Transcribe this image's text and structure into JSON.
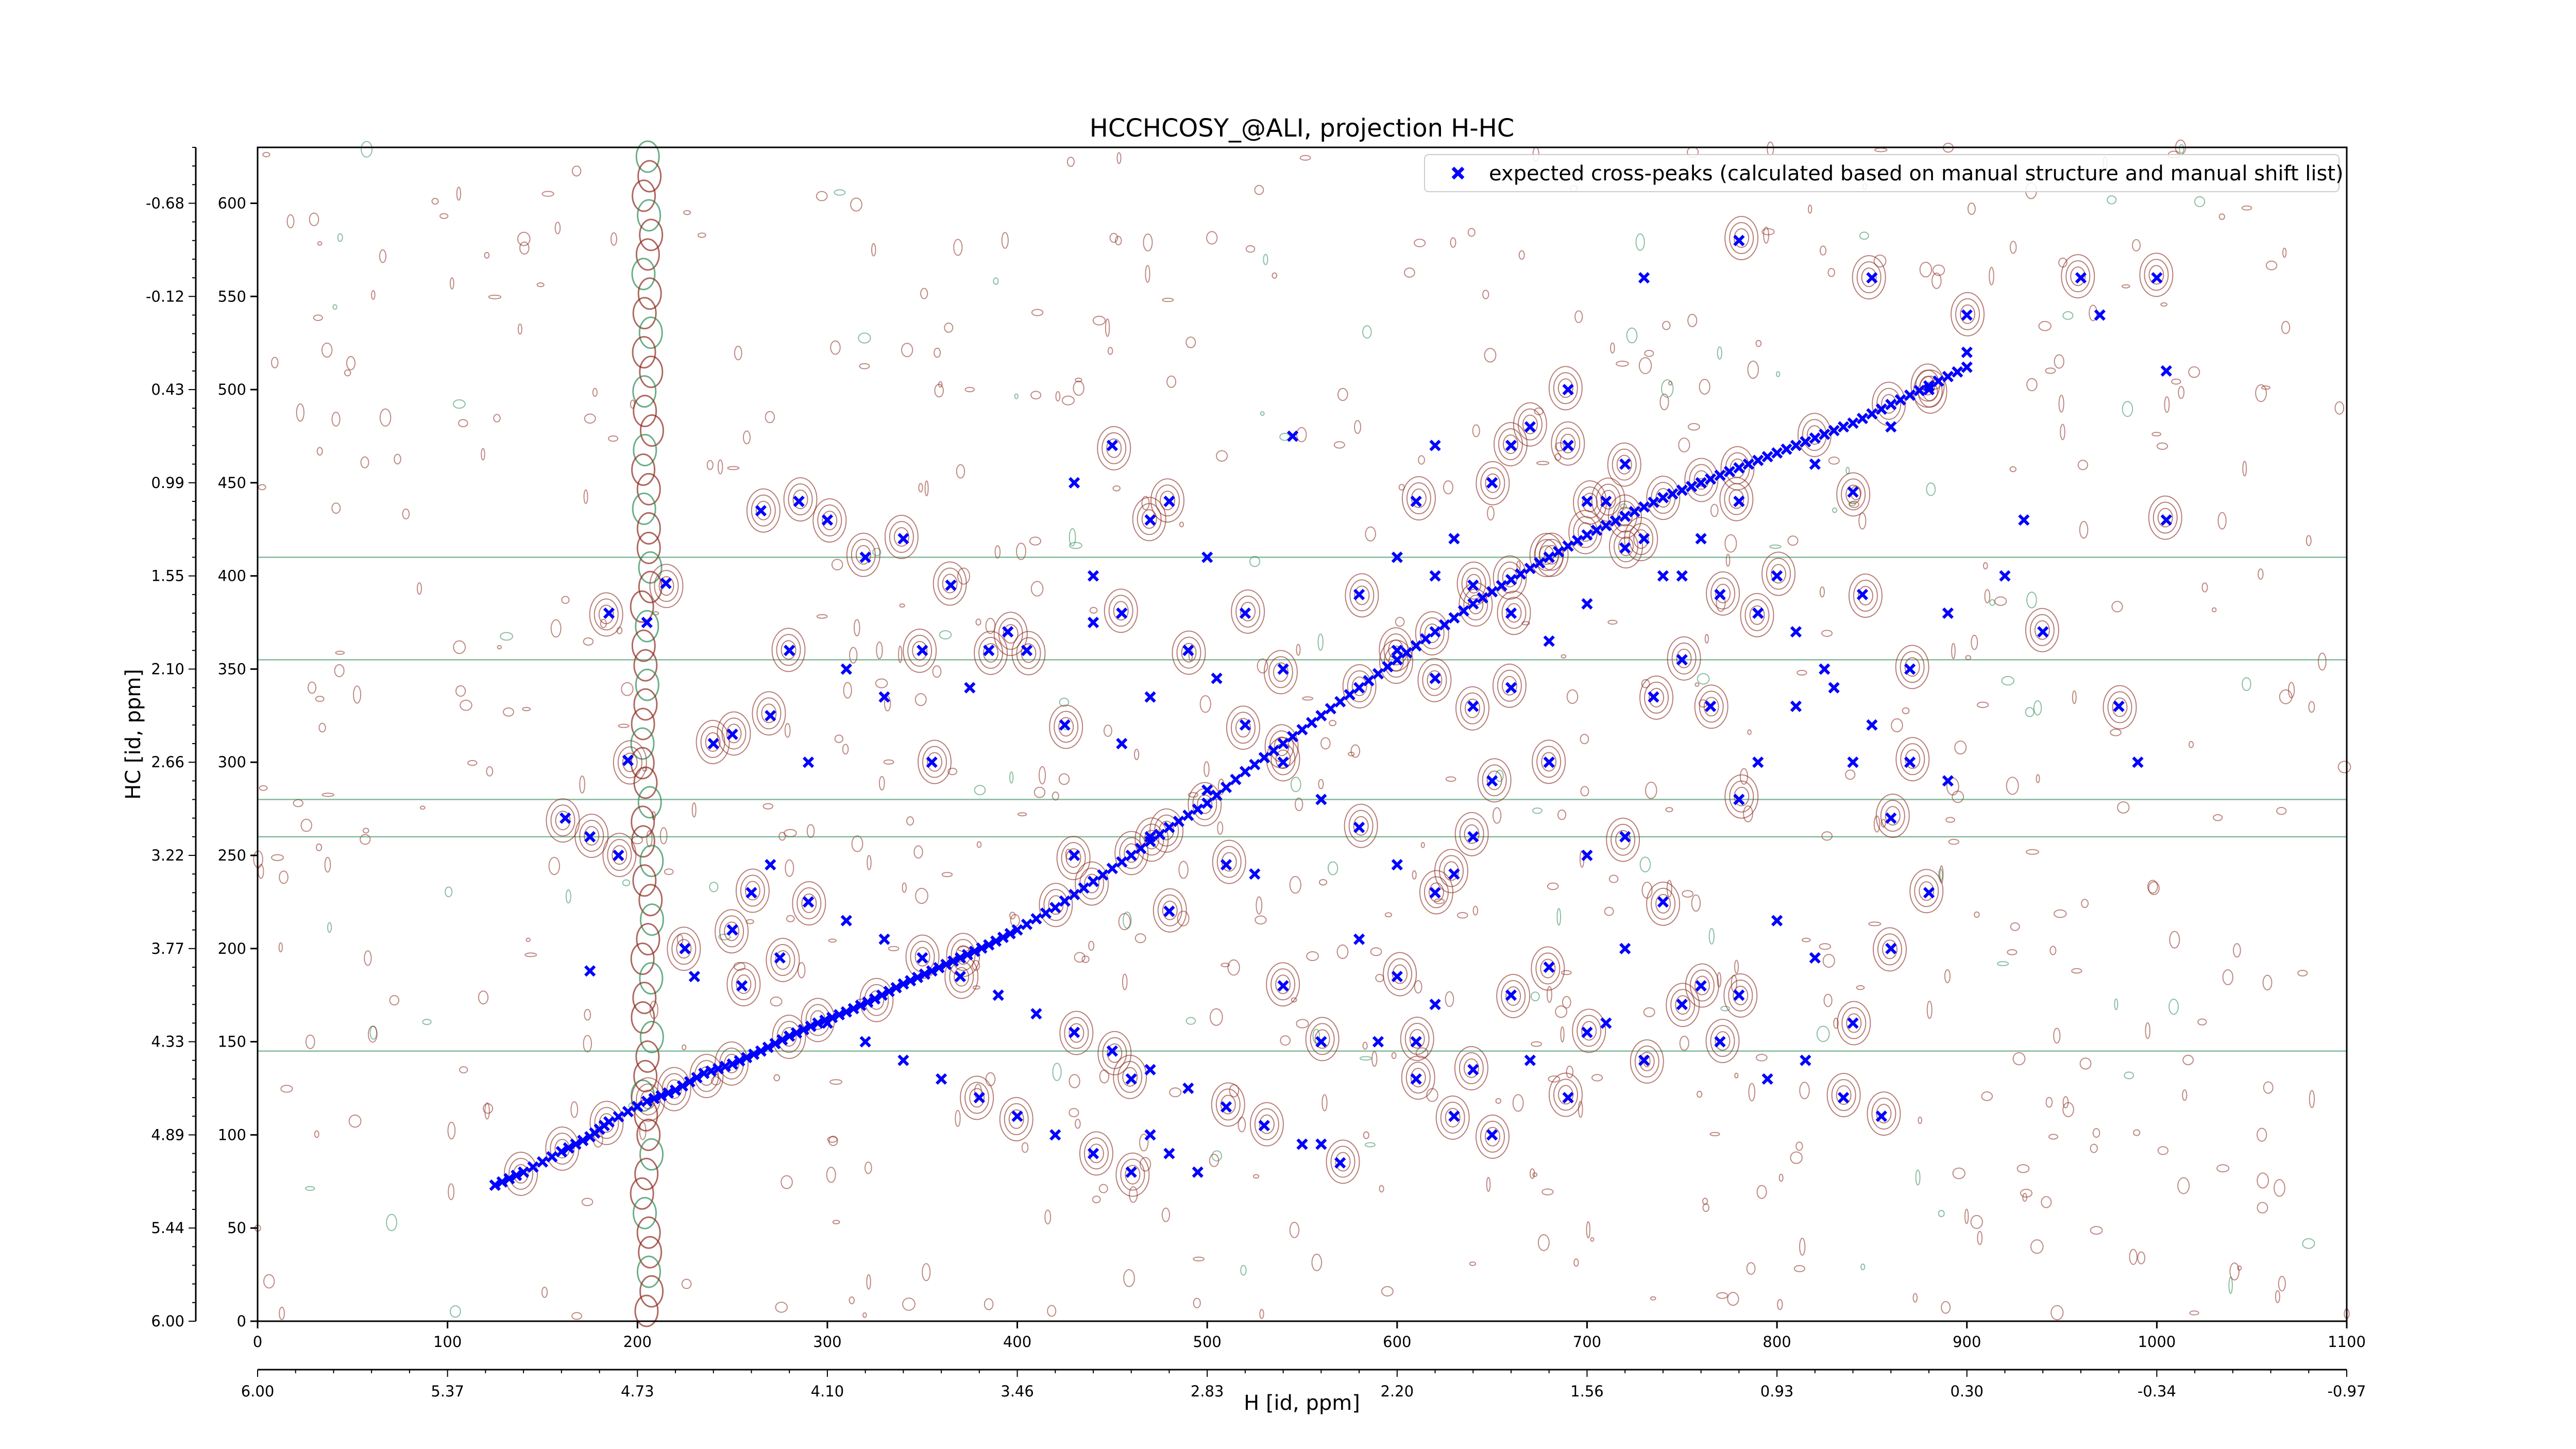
{
  "chart_data": {
    "type": "scatter",
    "title": "HCCHCOSY_@ALI, projection H-HC",
    "xlabel": "H [id, ppm]",
    "ylabel": "HC [id, ppm]",
    "xlim": [
      0,
      1100
    ],
    "ylim": [
      0,
      630
    ],
    "x_ticks_points": [
      0,
      100,
      200,
      300,
      400,
      500,
      600,
      700,
      800,
      900,
      1000,
      1100
    ],
    "x_ticks_ppm": [
      {
        "value": 0,
        "label": "6.00"
      },
      {
        "value": 100,
        "label": "5.37"
      },
      {
        "value": 200,
        "label": "4.73"
      },
      {
        "value": 300,
        "label": "4.10"
      },
      {
        "value": 400,
        "label": "3.46"
      },
      {
        "value": 500,
        "label": "2.83"
      },
      {
        "value": 600,
        "label": "2.20"
      },
      {
        "value": 700,
        "label": "1.56"
      },
      {
        "value": 800,
        "label": "0.93"
      },
      {
        "value": 900,
        "label": "0.30"
      },
      {
        "value": 1000,
        "label": "-0.34"
      },
      {
        "value": 1100,
        "label": "-0.97"
      }
    ],
    "y_ticks_points": [
      0,
      50,
      100,
      150,
      200,
      250,
      300,
      350,
      400,
      450,
      500,
      550,
      600
    ],
    "y_ticks_ppm": [
      {
        "value": 0,
        "label": "6.00"
      },
      {
        "value": 50,
        "label": "5.44"
      },
      {
        "value": 100,
        "label": "4.89"
      },
      {
        "value": 150,
        "label": "4.33"
      },
      {
        "value": 200,
        "label": "3.77"
      },
      {
        "value": 250,
        "label": "3.22"
      },
      {
        "value": 300,
        "label": "2.66"
      },
      {
        "value": 350,
        "label": "2.10"
      },
      {
        "value": 400,
        "label": "1.55"
      },
      {
        "value": 450,
        "label": "0.99"
      },
      {
        "value": 500,
        "label": "0.43"
      },
      {
        "value": 550,
        "label": "-0.12"
      },
      {
        "value": 600,
        "label": "-0.68"
      }
    ],
    "legend": {
      "position": "top-right",
      "entries": [
        {
          "label": "expected cross-peaks (calculated based on manual structure and manual shift list)",
          "color": "#0000ff",
          "marker": "x"
        }
      ]
    },
    "colors": {
      "peaks": "#0000ff",
      "contour_positive": "#8b2a1e",
      "contour_negative": "#2e8b57"
    },
    "grid": false,
    "series": [
      {
        "name": "expected cross-peaks (calculated based on manual structure and manual shift list)",
        "diagonal": [
          [
            125,
            73
          ],
          [
            140,
            80
          ],
          [
            160,
            91
          ],
          [
            175,
            99
          ],
          [
            185,
            107
          ],
          [
            205,
            118
          ],
          [
            220,
            124
          ],
          [
            235,
            133
          ],
          [
            250,
            138
          ],
          [
            265,
            145
          ],
          [
            280,
            153
          ],
          [
            295,
            160
          ],
          [
            310,
            166
          ],
          [
            325,
            173
          ],
          [
            340,
            181
          ],
          [
            355,
            188
          ],
          [
            370,
            195
          ],
          [
            385,
            202
          ],
          [
            400,
            210
          ],
          [
            420,
            222
          ],
          [
            440,
            236
          ],
          [
            460,
            250
          ],
          [
            480,
            265
          ],
          [
            500,
            278
          ],
          [
            520,
            295
          ],
          [
            540,
            310
          ],
          [
            560,
            325
          ],
          [
            580,
            340
          ],
          [
            600,
            355
          ],
          [
            620,
            370
          ],
          [
            640,
            385
          ],
          [
            660,
            398
          ],
          [
            680,
            410
          ],
          [
            700,
            422
          ],
          [
            720,
            432
          ],
          [
            740,
            442
          ],
          [
            760,
            450
          ],
          [
            780,
            458
          ],
          [
            800,
            466
          ],
          [
            820,
            474
          ],
          [
            840,
            482
          ],
          [
            860,
            492
          ],
          [
            880,
            502
          ],
          [
            900,
            512
          ]
        ],
        "points": [
          [
            125,
            73
          ],
          [
            162,
            270
          ],
          [
            175,
            188
          ],
          [
            175,
            260
          ],
          [
            185,
            380
          ],
          [
            190,
            250
          ],
          [
            195,
            301
          ],
          [
            205,
            375
          ],
          [
            215,
            396
          ],
          [
            225,
            200
          ],
          [
            230,
            185
          ],
          [
            240,
            310
          ],
          [
            250,
            315
          ],
          [
            255,
            180
          ],
          [
            265,
            435
          ],
          [
            270,
            325
          ],
          [
            275,
            195
          ],
          [
            280,
            360
          ],
          [
            285,
            440
          ],
          [
            290,
            300
          ],
          [
            300,
            430
          ],
          [
            310,
            350
          ],
          [
            320,
            410
          ],
          [
            330,
            335
          ],
          [
            340,
            420
          ],
          [
            350,
            360
          ],
          [
            355,
            300
          ],
          [
            365,
            395
          ],
          [
            375,
            340
          ],
          [
            385,
            360
          ],
          [
            395,
            370
          ],
          [
            405,
            360
          ],
          [
            425,
            320
          ],
          [
            430,
            250
          ],
          [
            440,
            375
          ],
          [
            455,
            310
          ],
          [
            470,
            260
          ],
          [
            480,
            220
          ],
          [
            500,
            285
          ],
          [
            510,
            245
          ],
          [
            525,
            240
          ],
          [
            540,
            180
          ],
          [
            560,
            150
          ],
          [
            580,
            205
          ],
          [
            600,
            185
          ],
          [
            610,
            150
          ],
          [
            620,
            170
          ],
          [
            640,
            135
          ],
          [
            660,
            175
          ],
          [
            680,
            190
          ],
          [
            700,
            155
          ],
          [
            720,
            200
          ],
          [
            740,
            225
          ],
          [
            760,
            180
          ],
          [
            780,
            175
          ],
          [
            800,
            215
          ],
          [
            820,
            195
          ],
          [
            840,
            160
          ],
          [
            860,
            200
          ],
          [
            880,
            230
          ],
          [
            460,
            130
          ],
          [
            470,
            100
          ],
          [
            480,
            90
          ],
          [
            495,
            80
          ],
          [
            560,
            95
          ],
          [
            545,
            475
          ],
          [
            580,
            390
          ],
          [
            600,
            360
          ],
          [
            620,
            345
          ],
          [
            640,
            330
          ],
          [
            660,
            380
          ],
          [
            680,
            410
          ],
          [
            700,
            440
          ],
          [
            720,
            460
          ],
          [
            740,
            400
          ],
          [
            760,
            420
          ],
          [
            780,
            440
          ],
          [
            800,
            400
          ],
          [
            820,
            460
          ],
          [
            840,
            445
          ],
          [
            860,
            480
          ],
          [
            880,
            500
          ],
          [
            900,
            520
          ],
          [
            930,
            430
          ],
          [
            970,
            540
          ],
          [
            1005,
            430
          ],
          [
            1005,
            510
          ],
          [
            840,
            300
          ],
          [
            860,
            270
          ],
          [
            780,
            280
          ],
          [
            720,
            260
          ],
          [
            700,
            250
          ],
          [
            680,
            300
          ],
          [
            650,
            290
          ],
          [
            640,
            260
          ],
          [
            630,
            240
          ],
          [
            620,
            230
          ],
          [
            600,
            245
          ],
          [
            580,
            265
          ],
          [
            560,
            280
          ],
          [
            540,
            300
          ],
          [
            520,
            320
          ],
          [
            505,
            345
          ],
          [
            490,
            360
          ],
          [
            470,
            335
          ],
          [
            455,
            380
          ],
          [
            600,
            410
          ],
          [
            610,
            440
          ],
          [
            620,
            470
          ],
          [
            640,
            395
          ],
          [
            660,
            340
          ],
          [
            680,
            365
          ],
          [
            700,
            385
          ],
          [
            720,
            415
          ],
          [
            735,
            335
          ],
          [
            750,
            355
          ],
          [
            765,
            330
          ],
          [
            790,
            300
          ],
          [
            810,
            330
          ],
          [
            825,
            350
          ],
          [
            845,
            390
          ],
          [
            870,
            350
          ],
          [
            890,
            380
          ],
          [
            920,
            400
          ],
          [
            940,
            370
          ],
          [
            980,
            330
          ],
          [
            990,
            300
          ],
          [
            1000,
            560
          ],
          [
            960,
            560
          ],
          [
            900,
            540
          ],
          [
            850,
            560
          ],
          [
            780,
            580
          ],
          [
            690,
            500
          ],
          [
            730,
            560
          ],
          [
            620,
            400
          ],
          [
            630,
            420
          ],
          [
            650,
            450
          ],
          [
            660,
            470
          ],
          [
            670,
            480
          ],
          [
            690,
            470
          ],
          [
            710,
            440
          ],
          [
            730,
            420
          ],
          [
            750,
            400
          ],
          [
            770,
            390
          ],
          [
            790,
            380
          ],
          [
            810,
            370
          ],
          [
            830,
            340
          ],
          [
            850,
            320
          ],
          [
            870,
            300
          ],
          [
            890,
            290
          ],
          [
            430,
            450
          ],
          [
            440,
            400
          ],
          [
            450,
            470
          ],
          [
            470,
            430
          ],
          [
            480,
            440
          ],
          [
            500,
            410
          ],
          [
            520,
            380
          ],
          [
            540,
            350
          ],
          [
            300,
            160
          ],
          [
            320,
            150
          ],
          [
            340,
            140
          ],
          [
            360,
            130
          ],
          [
            380,
            120
          ],
          [
            400,
            110
          ],
          [
            420,
            100
          ],
          [
            440,
            90
          ],
          [
            460,
            80
          ],
          [
            250,
            210
          ],
          [
            260,
            230
          ],
          [
            270,
            245
          ],
          [
            290,
            225
          ],
          [
            310,
            215
          ],
          [
            330,
            205
          ],
          [
            350,
            195
          ],
          [
            370,
            185
          ],
          [
            390,
            175
          ],
          [
            410,
            165
          ],
          [
            430,
            155
          ],
          [
            450,
            145
          ],
          [
            470,
            135
          ],
          [
            490,
            125
          ],
          [
            510,
            115
          ],
          [
            530,
            105
          ],
          [
            550,
            95
          ],
          [
            570,
            85
          ],
          [
            590,
            150
          ],
          [
            610,
            130
          ],
          [
            630,
            110
          ],
          [
            650,
            100
          ],
          [
            670,
            140
          ],
          [
            690,
            120
          ],
          [
            710,
            160
          ],
          [
            730,
            140
          ],
          [
            750,
            170
          ],
          [
            770,
            150
          ],
          [
            795,
            130
          ],
          [
            815,
            140
          ],
          [
            835,
            120
          ],
          [
            855,
            110
          ]
        ]
      }
    ]
  }
}
